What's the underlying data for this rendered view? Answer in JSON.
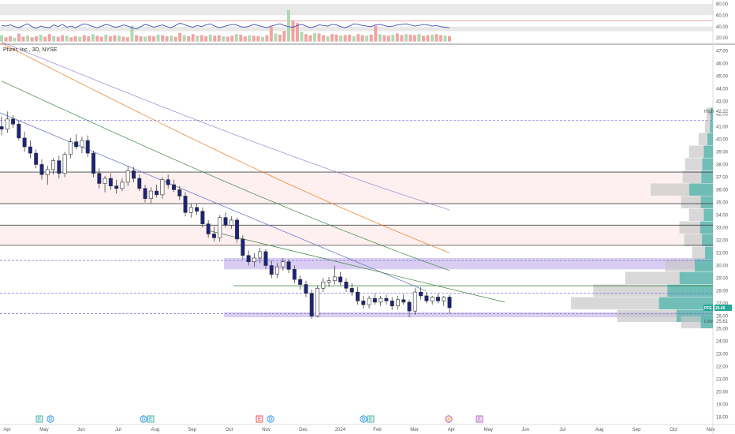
{
  "chart_data": {
    "type": "candlestick",
    "title": "Pfizer, Inc., 3D, NYSE",
    "symbol": "PFE",
    "last_price": "26.66",
    "high": {
      "label": "High",
      "value": "42.22"
    },
    "low": {
      "label": "Low",
      "value": "25.61"
    },
    "price_axis": {
      "ticks": [
        "47.00",
        "46.00",
        "45.00",
        "44.00",
        "43.00",
        "42.00",
        "41.00",
        "40.00",
        "39.00",
        "38.00",
        "37.00",
        "36.00",
        "35.00",
        "34.00",
        "33.00",
        "32.00",
        "31.00",
        "30.00",
        "29.00",
        "28.00",
        "27.00",
        "26.00",
        "25.00",
        "24.00",
        "23.00",
        "22.00",
        "21.00",
        "20.00",
        "19.00",
        "18.00"
      ],
      "range": [
        17.6,
        47.4
      ]
    },
    "time_axis": {
      "labels": [
        "Apr",
        "May",
        "Jun",
        "Jul",
        "Aug",
        "Sep",
        "Oct",
        "Nov",
        "Dec",
        "2024",
        "Feb",
        "Mar",
        "Apr",
        "May",
        "Jun",
        "Jul",
        "Aug",
        "Sep",
        "Oct",
        "Nov"
      ]
    },
    "rsi_pane": {
      "ticks": [
        "80.00",
        "60.00",
        "40.00",
        "20.00"
      ],
      "range": [
        12,
        84
      ],
      "values": [
        42,
        41,
        43,
        40,
        38,
        42,
        45,
        40,
        37,
        41,
        39,
        38,
        43,
        40,
        44,
        39,
        41,
        38,
        42,
        45,
        43,
        40,
        38,
        41,
        44,
        42,
        39,
        40,
        43,
        41,
        38,
        36,
        40,
        44,
        42,
        39,
        41,
        43,
        40,
        38,
        42,
        46,
        44,
        41,
        39,
        42,
        40,
        43,
        45,
        41,
        38,
        40,
        42,
        44,
        43,
        40,
        39,
        41,
        44,
        42,
        40,
        38,
        41,
        43,
        45,
        42,
        40,
        39,
        42,
        44,
        41,
        38,
        40,
        43,
        42,
        41,
        44,
        43,
        40,
        38,
        41,
        45,
        44,
        42,
        41,
        40,
        43,
        44,
        42,
        40,
        41,
        43,
        44,
        45,
        43,
        41,
        42,
        44,
        43,
        41,
        42,
        40,
        39,
        38
      ]
    },
    "volume_bars": [
      12,
      8,
      10,
      7,
      15,
      9,
      11,
      8,
      10,
      13,
      9,
      14,
      10,
      9,
      12,
      11,
      8,
      10,
      9,
      12,
      10,
      14,
      11,
      9,
      13,
      10,
      12,
      11,
      9,
      8,
      30,
      12,
      10,
      9,
      11,
      10,
      13,
      12,
      10,
      11,
      9,
      16,
      12,
      10,
      14,
      11,
      12,
      10,
      13,
      11,
      12,
      10,
      9,
      11,
      14,
      13,
      10,
      12,
      11,
      10,
      9,
      12,
      28,
      15,
      13,
      20,
      60,
      40,
      35,
      18,
      14,
      12,
      16,
      15,
      12,
      10,
      14,
      13,
      11,
      12,
      13,
      10,
      14,
      12,
      11,
      13,
      30,
      14,
      12,
      11,
      13,
      15,
      12,
      14,
      13,
      12,
      14,
      11,
      12,
      13,
      14,
      12,
      11,
      10
    ],
    "candles": [
      {
        "o": 41.0,
        "h": 41.8,
        "l": 40.3,
        "c": 40.8
      },
      {
        "o": 40.8,
        "h": 42.2,
        "l": 40.5,
        "c": 41.6
      },
      {
        "o": 41.6,
        "h": 41.9,
        "l": 40.9,
        "c": 41.2
      },
      {
        "o": 41.2,
        "h": 41.5,
        "l": 39.9,
        "c": 40.1
      },
      {
        "o": 40.1,
        "h": 40.6,
        "l": 39.0,
        "c": 39.4
      },
      {
        "o": 39.4,
        "h": 39.9,
        "l": 38.5,
        "c": 38.9
      },
      {
        "o": 38.9,
        "h": 39.2,
        "l": 37.7,
        "c": 38.0
      },
      {
        "o": 38.0,
        "h": 38.4,
        "l": 36.8,
        "c": 37.2
      },
      {
        "o": 37.2,
        "h": 37.9,
        "l": 36.4,
        "c": 37.6
      },
      {
        "o": 37.6,
        "h": 38.5,
        "l": 37.2,
        "c": 38.3
      },
      {
        "o": 38.3,
        "h": 38.7,
        "l": 36.9,
        "c": 37.3
      },
      {
        "o": 37.3,
        "h": 39.0,
        "l": 37.0,
        "c": 38.8
      },
      {
        "o": 38.8,
        "h": 40.1,
        "l": 38.5,
        "c": 39.8
      },
      {
        "o": 39.8,
        "h": 40.4,
        "l": 39.2,
        "c": 39.4
      },
      {
        "o": 39.4,
        "h": 40.2,
        "l": 38.9,
        "c": 39.9
      },
      {
        "o": 39.9,
        "h": 40.3,
        "l": 38.6,
        "c": 38.9
      },
      {
        "o": 38.9,
        "h": 39.1,
        "l": 37.0,
        "c": 37.3
      },
      {
        "o": 37.3,
        "h": 37.7,
        "l": 36.1,
        "c": 36.5
      },
      {
        "o": 36.5,
        "h": 37.1,
        "l": 35.8,
        "c": 36.9
      },
      {
        "o": 36.9,
        "h": 37.3,
        "l": 36.0,
        "c": 36.3
      },
      {
        "o": 36.3,
        "h": 36.8,
        "l": 35.7,
        "c": 36.1
      },
      {
        "o": 36.1,
        "h": 36.9,
        "l": 35.9,
        "c": 36.6
      },
      {
        "o": 36.6,
        "h": 37.9,
        "l": 36.3,
        "c": 37.5
      },
      {
        "o": 37.5,
        "h": 37.8,
        "l": 36.6,
        "c": 36.9
      },
      {
        "o": 36.9,
        "h": 37.2,
        "l": 35.9,
        "c": 36.1
      },
      {
        "o": 36.1,
        "h": 36.4,
        "l": 35.0,
        "c": 35.3
      },
      {
        "o": 35.3,
        "h": 36.2,
        "l": 34.9,
        "c": 35.9
      },
      {
        "o": 35.9,
        "h": 36.4,
        "l": 35.4,
        "c": 35.6
      },
      {
        "o": 35.6,
        "h": 37.0,
        "l": 35.3,
        "c": 36.8
      },
      {
        "o": 36.8,
        "h": 37.2,
        "l": 36.1,
        "c": 36.4
      },
      {
        "o": 36.4,
        "h": 36.8,
        "l": 35.8,
        "c": 36.0
      },
      {
        "o": 36.0,
        "h": 36.3,
        "l": 35.2,
        "c": 35.5
      },
      {
        "o": 35.5,
        "h": 35.8,
        "l": 33.9,
        "c": 34.2
      },
      {
        "o": 34.2,
        "h": 34.9,
        "l": 33.8,
        "c": 34.6
      },
      {
        "o": 34.6,
        "h": 34.9,
        "l": 34.0,
        "c": 34.3
      },
      {
        "o": 34.3,
        "h": 34.6,
        "l": 33.0,
        "c": 33.3
      },
      {
        "o": 33.3,
        "h": 33.6,
        "l": 32.2,
        "c": 32.5
      },
      {
        "o": 32.5,
        "h": 33.1,
        "l": 31.9,
        "c": 32.2
      },
      {
        "o": 32.2,
        "h": 34.0,
        "l": 31.9,
        "c": 33.8
      },
      {
        "o": 33.8,
        "h": 34.2,
        "l": 33.0,
        "c": 33.2
      },
      {
        "o": 33.2,
        "h": 33.9,
        "l": 32.9,
        "c": 33.6
      },
      {
        "o": 33.6,
        "h": 33.8,
        "l": 31.8,
        "c": 32.1
      },
      {
        "o": 32.1,
        "h": 32.4,
        "l": 30.5,
        "c": 30.8
      },
      {
        "o": 30.8,
        "h": 31.2,
        "l": 30.0,
        "c": 30.3
      },
      {
        "o": 30.3,
        "h": 31.0,
        "l": 29.9,
        "c": 30.6
      },
      {
        "o": 30.6,
        "h": 31.4,
        "l": 30.2,
        "c": 31.1
      },
      {
        "o": 31.1,
        "h": 31.3,
        "l": 29.7,
        "c": 30.0
      },
      {
        "o": 30.0,
        "h": 30.4,
        "l": 29.0,
        "c": 29.3
      },
      {
        "o": 29.3,
        "h": 30.2,
        "l": 29.0,
        "c": 29.9
      },
      {
        "o": 29.9,
        "h": 30.6,
        "l": 29.6,
        "c": 30.3
      },
      {
        "o": 30.3,
        "h": 30.5,
        "l": 29.4,
        "c": 29.7
      },
      {
        "o": 29.7,
        "h": 30.0,
        "l": 28.6,
        "c": 28.9
      },
      {
        "o": 28.9,
        "h": 29.2,
        "l": 28.1,
        "c": 28.5
      },
      {
        "o": 28.5,
        "h": 28.8,
        "l": 27.5,
        "c": 27.8
      },
      {
        "o": 27.8,
        "h": 28.1,
        "l": 25.8,
        "c": 26.0
      },
      {
        "o": 26.0,
        "h": 28.4,
        "l": 25.9,
        "c": 28.2
      },
      {
        "o": 28.2,
        "h": 29.0,
        "l": 27.9,
        "c": 28.7
      },
      {
        "o": 28.7,
        "h": 29.1,
        "l": 28.3,
        "c": 28.8
      },
      {
        "o": 28.8,
        "h": 30.0,
        "l": 28.5,
        "c": 29.1
      },
      {
        "o": 29.1,
        "h": 29.5,
        "l": 28.4,
        "c": 28.7
      },
      {
        "o": 28.7,
        "h": 29.0,
        "l": 27.9,
        "c": 28.2
      },
      {
        "o": 28.2,
        "h": 28.6,
        "l": 27.6,
        "c": 27.9
      },
      {
        "o": 27.9,
        "h": 28.3,
        "l": 26.9,
        "c": 27.2
      },
      {
        "o": 27.2,
        "h": 27.6,
        "l": 26.6,
        "c": 26.9
      },
      {
        "o": 26.9,
        "h": 27.6,
        "l": 26.6,
        "c": 27.4
      },
      {
        "o": 27.4,
        "h": 27.8,
        "l": 26.9,
        "c": 27.1
      },
      {
        "o": 27.1,
        "h": 27.6,
        "l": 26.8,
        "c": 27.4
      },
      {
        "o": 27.4,
        "h": 27.7,
        "l": 26.9,
        "c": 27.2
      },
      {
        "o": 27.2,
        "h": 27.5,
        "l": 26.5,
        "c": 26.8
      },
      {
        "o": 26.8,
        "h": 27.6,
        "l": 26.5,
        "c": 27.3
      },
      {
        "o": 27.3,
        "h": 27.7,
        "l": 26.9,
        "c": 27.1
      },
      {
        "o": 27.1,
        "h": 27.3,
        "l": 25.9,
        "c": 26.4
      },
      {
        "o": 26.4,
        "h": 28.2,
        "l": 26.1,
        "c": 27.9
      },
      {
        "o": 27.9,
        "h": 28.3,
        "l": 27.3,
        "c": 27.6
      },
      {
        "o": 27.6,
        "h": 27.9,
        "l": 27.0,
        "c": 27.2
      },
      {
        "o": 27.2,
        "h": 27.6,
        "l": 26.9,
        "c": 27.5
      },
      {
        "o": 27.5,
        "h": 27.8,
        "l": 27.0,
        "c": 27.2
      },
      {
        "o": 27.2,
        "h": 27.6,
        "l": 26.8,
        "c": 27.5
      },
      {
        "o": 27.5,
        "h": 27.7,
        "l": 26.2,
        "c": 26.66
      }
    ],
    "volume_profile_rows": [
      {
        "p": 42.0,
        "v": 8
      },
      {
        "p": 41.0,
        "v": 10
      },
      {
        "p": 40.0,
        "v": 18
      },
      {
        "p": 39.0,
        "v": 30
      },
      {
        "p": 38.0,
        "v": 35
      },
      {
        "p": 37.0,
        "v": 38
      },
      {
        "p": 36.0,
        "v": 78
      },
      {
        "p": 35.0,
        "v": 40
      },
      {
        "p": 34.0,
        "v": 30
      },
      {
        "p": 33.0,
        "v": 42
      },
      {
        "p": 32.0,
        "v": 36
      },
      {
        "p": 31.0,
        "v": 26
      },
      {
        "p": 30.0,
        "v": 60
      },
      {
        "p": 29.0,
        "v": 110
      },
      {
        "p": 28.0,
        "v": 150
      },
      {
        "p": 27.0,
        "v": 178
      },
      {
        "p": 26.0,
        "v": 120
      },
      {
        "p": 25.5,
        "v": 40
      }
    ],
    "moving_averages": [
      {
        "color": "#2e7d32",
        "start": 44.6,
        "end": 29.6
      },
      {
        "color": "#ef6c00",
        "start": 47.6,
        "end": 31.0
      },
      {
        "color": "#9575cd",
        "start": 47.7,
        "end": 34.4
      }
    ],
    "levels": [
      {
        "price": 41.5,
        "style": "dashed",
        "color": "#7b6fd0"
      },
      {
        "price": 37.4,
        "style": "solid",
        "color": "#444444"
      },
      {
        "price": 34.9,
        "style": "solid",
        "color": "#444444"
      },
      {
        "price": 33.2,
        "style": "solid",
        "color": "#444444"
      },
      {
        "price": 31.6,
        "style": "solid",
        "color": "#444444"
      },
      {
        "price": 30.4,
        "style": "dashed",
        "color": "#7b6fd0"
      },
      {
        "price": 28.4,
        "style": "solid",
        "color": "#2e7d32"
      },
      {
        "price": 27.8,
        "style": "dashed",
        "color": "#7b6fd0"
      },
      {
        "price": 26.2,
        "style": "dashed",
        "color": "#7b6fd0"
      }
    ],
    "zones": [
      {
        "from": 29.7,
        "to": 30.6,
        "color": "#b9a6e8"
      },
      {
        "from": 25.9,
        "to": 26.3,
        "color": "#b9a6e8"
      }
    ],
    "events": [
      {
        "label": "E",
        "kind": "earnings"
      },
      {
        "label": "D",
        "kind": "dividend"
      },
      {
        "label": "D",
        "kind": "dividend"
      },
      {
        "label": "E",
        "kind": "earnings"
      },
      {
        "label": "E",
        "kind": "earnings-red"
      },
      {
        "label": "D",
        "kind": "dividend"
      },
      {
        "label": "D",
        "kind": "dividend"
      },
      {
        "label": "E",
        "kind": "earnings"
      },
      {
        "label": "E",
        "kind": "earnings-purple"
      }
    ],
    "colors": {
      "up": "#ffffff",
      "down": "#1a237e",
      "wick": "#444444",
      "price_tag": "#26a69a",
      "zone": "#b9a6e8"
    }
  }
}
